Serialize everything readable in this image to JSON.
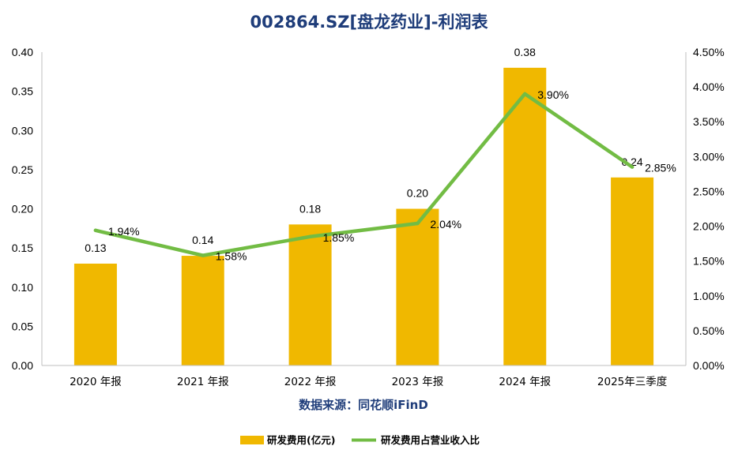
{
  "chart_data": {
    "type": "bar+line",
    "title": "002864.SZ[盘龙药业]-利润表",
    "source": "数据来源：同花顺iFinD",
    "categories": [
      "2020 年报",
      "2021 年报",
      "2022 年报",
      "2023 年报",
      "2024 年报",
      "2025年三季度"
    ],
    "series": [
      {
        "name": "研发费用(亿元)",
        "type": "bar",
        "axis": "left",
        "color": "#f0b800",
        "values": [
          0.13,
          0.14,
          0.18,
          0.2,
          0.38,
          0.24
        ],
        "labels": [
          "0.13",
          "0.14",
          "0.18",
          "0.20",
          "0.38",
          "0.24"
        ]
      },
      {
        "name": "研发费用占营业收入比",
        "type": "line",
        "axis": "right",
        "color": "#72bc44",
        "values": [
          1.94,
          1.58,
          1.85,
          2.04,
          3.9,
          2.85
        ],
        "labels": [
          "1.94%",
          "1.58%",
          "1.85%",
          "2.04%",
          "3.90%",
          "2.85%"
        ]
      }
    ],
    "y_left": {
      "range": [
        0,
        0.4
      ],
      "ticks": [
        0,
        0.05,
        0.1,
        0.15,
        0.2,
        0.25,
        0.3,
        0.35,
        0.4
      ],
      "tick_labels": [
        "0.00",
        "0.05",
        "0.10",
        "0.15",
        "0.20",
        "0.25",
        "0.30",
        "0.35",
        "0.40"
      ]
    },
    "y_right": {
      "range": [
        0,
        4.5
      ],
      "ticks": [
        0,
        0.5,
        1.0,
        1.5,
        2.0,
        2.5,
        3.0,
        3.5,
        4.0,
        4.5
      ],
      "tick_labels": [
        "0.00%",
        "0.50%",
        "1.00%",
        "1.50%",
        "2.00%",
        "2.50%",
        "3.00%",
        "3.50%",
        "4.00%",
        "4.50%"
      ]
    },
    "grid": false,
    "legend": "bottom-center"
  }
}
